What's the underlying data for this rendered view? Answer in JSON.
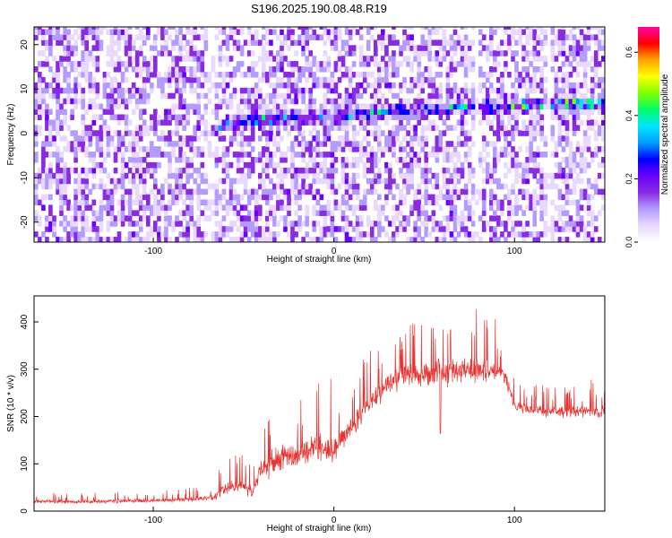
{
  "title": "S196.2025.190.08.48.R19",
  "chart_data": [
    {
      "type": "heatmap",
      "xlabel": "Height of straight line (km)",
      "ylabel": "Frequency (Hz)",
      "xlim": [
        -166,
        150
      ],
      "ylim": [
        -24.5,
        24
      ],
      "xticks": [
        -100,
        0,
        100
      ],
      "yticks": [
        -20,
        -10,
        0,
        10,
        20
      ],
      "colorbar": {
        "label": "Normalized spectral amplitude",
        "range": [
          0,
          0.68
        ],
        "ticks": [
          "0.0",
          "0.2",
          "0.4",
          "0.6"
        ],
        "colors": [
          "#ffffff",
          "#e9d8ff",
          "#b49cff",
          "#8a2be2",
          "#6a00ff",
          "#0000ff",
          "#00a0ff",
          "#00e5ff",
          "#00ff66",
          "#7fff00",
          "#ffff00",
          "#ffa500",
          "#ff0000",
          "#ff00aa"
        ]
      },
      "ridge": {
        "x": [
          -70,
          -55,
          -30,
          -18,
          0,
          20,
          57,
          95,
          120,
          132
        ],
        "y": [
          0,
          2,
          3,
          3,
          3.5,
          4,
          5,
          5.5,
          6,
          6
        ],
        "peak_amplitude": [
          0.48,
          0.25,
          0.2,
          0.3,
          0.18,
          0.3,
          0.3,
          0.38,
          0.5,
          0.35
        ]
      },
      "gaps_x": [
        -69,
        78,
        118
      ]
    },
    {
      "type": "line",
      "xlabel": "Height of straight line (km)",
      "ylabel": "SNR (10 * v/v)",
      "xlim": [
        -166,
        150
      ],
      "ylim": [
        0,
        455
      ],
      "xticks": [
        -100,
        0,
        100
      ],
      "yticks": [
        0,
        100,
        200,
        300,
        400
      ],
      "color": "#e8322f",
      "series": [
        {
          "x": [
            -166,
            -140,
            -100,
            -80,
            -66,
            -60,
            -50,
            -45,
            -40,
            -30,
            -20,
            -10,
            0,
            10,
            20,
            30,
            40,
            60,
            80,
            95,
            100,
            120,
            150
          ],
          "y": [
            20,
            20,
            22,
            25,
            30,
            50,
            55,
            40,
            90,
            110,
            120,
            140,
            130,
            180,
            230,
            270,
            285,
            295,
            300,
            290,
            220,
            210,
            210
          ],
          "spread": [
            10,
            10,
            10,
            12,
            15,
            35,
            35,
            25,
            55,
            65,
            70,
            70,
            60,
            50,
            60,
            60,
            60,
            65,
            65,
            45,
            30,
            30,
            30
          ]
        }
      ]
    }
  ]
}
